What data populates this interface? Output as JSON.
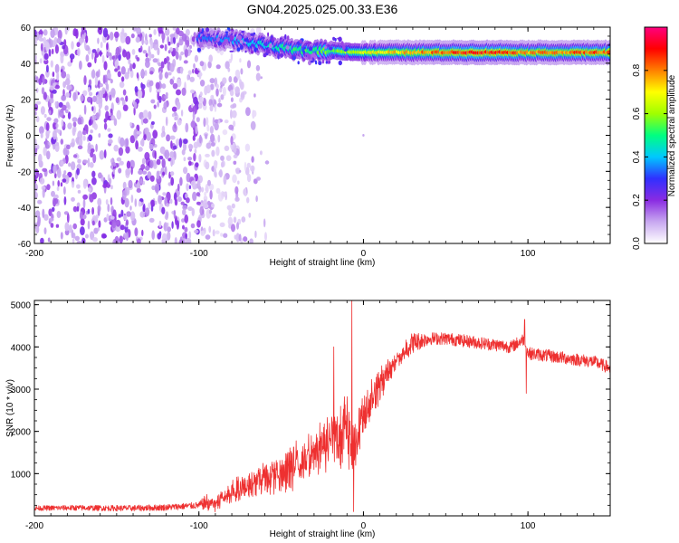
{
  "title": "GN04.2025.025.00.33.E36",
  "colors": {
    "snr_line": "#ee3030",
    "axis": "#000000",
    "background": "#ffffff"
  },
  "chart_data": [
    {
      "type": "heatmap",
      "title": "GN04.2025.025.00.33.E36",
      "xlabel": "Height of straight line (km)",
      "ylabel": "Frequency (Hz)",
      "xlim": [
        -200,
        150
      ],
      "ylim": [
        -60,
        60
      ],
      "xticks": [
        -200,
        -100,
        0,
        100
      ],
      "yticks": [
        -60,
        -40,
        -20,
        0,
        20,
        40,
        60
      ],
      "colorbar": {
        "label": "Normalized spectral amplitude",
        "range": [
          0,
          1
        ],
        "ticks": [
          "0.0",
          "0.2",
          "0.4",
          "0.6",
          "0.8"
        ],
        "colormap": [
          "#ffffff",
          "#c8a8f0",
          "#8a2be2",
          "#3030ff",
          "#00c8ff",
          "#00ff80",
          "#a0ff00",
          "#ffff00",
          "#ff8000",
          "#ff0000",
          "#ff0080"
        ]
      },
      "noise_region": {
        "x_range": [
          -200,
          -80
        ],
        "y_range": [
          -60,
          60
        ],
        "approx_amplitude": 0.12
      },
      "signal_band": {
        "description_points": [
          {
            "x": -100,
            "y": 54,
            "amp": 0.35
          },
          {
            "x": -80,
            "y": 53,
            "amp": 0.4
          },
          {
            "x": -60,
            "y": 50,
            "amp": 0.45
          },
          {
            "x": -40,
            "y": 47,
            "amp": 0.55
          },
          {
            "x": -20,
            "y": 47,
            "amp": 0.6
          },
          {
            "x": 0,
            "y": 46,
            "amp": 0.7
          },
          {
            "x": 20,
            "y": 46,
            "amp": 0.8
          },
          {
            "x": 50,
            "y": 46,
            "amp": 0.9
          },
          {
            "x": 80,
            "y": 46,
            "amp": 0.95
          },
          {
            "x": 100,
            "y": 46,
            "amp": 0.85
          },
          {
            "x": 150,
            "y": 46,
            "amp": 0.9
          }
        ]
      }
    },
    {
      "type": "line",
      "xlabel": "Height of straight line (km)",
      "ylabel": "SNR (10 * v/v)",
      "xlim": [
        -200,
        150
      ],
      "ylim": [
        0,
        5100
      ],
      "xticks": [
        -200,
        -100,
        0,
        100
      ],
      "yticks": [
        1000,
        2000,
        3000,
        4000,
        5000
      ],
      "series": [
        {
          "color": "#ee3030",
          "x": [
            -200,
            -180,
            -160,
            -140,
            -120,
            -100,
            -90,
            -80,
            -70,
            -60,
            -50,
            -40,
            -30,
            -20,
            -10,
            -5,
            0,
            10,
            20,
            30,
            40,
            50,
            60,
            70,
            80,
            90,
            98,
            100,
            110,
            120,
            130,
            140,
            150
          ],
          "y": [
            180,
            190,
            185,
            180,
            200,
            250,
            400,
            700,
            900,
            1100,
            1200,
            1500,
            1700,
            2200,
            2500,
            2000,
            2600,
            3300,
            3800,
            4100,
            4200,
            4200,
            4150,
            4100,
            4050,
            4000,
            4200,
            3850,
            3800,
            3750,
            3700,
            3650,
            3500
          ]
        }
      ],
      "noise_amplitude": [
        {
          "x": -200,
          "amp": 60
        },
        {
          "x": -100,
          "amp": 80
        },
        {
          "x": -90,
          "amp": 350
        },
        {
          "x": -60,
          "amp": 600
        },
        {
          "x": -30,
          "amp": 900
        },
        {
          "x": -10,
          "amp": 1300
        },
        {
          "x": 0,
          "amp": 900
        },
        {
          "x": 20,
          "amp": 350
        },
        {
          "x": 40,
          "amp": 150
        },
        {
          "x": 150,
          "amp": 150
        }
      ],
      "spikes": [
        {
          "x": -7,
          "y": 5100
        },
        {
          "x": -6,
          "y": 100
        },
        {
          "x": -18,
          "y": 4000
        },
        {
          "x": 98,
          "y": 4650
        },
        {
          "x": 99,
          "y": 2900
        }
      ]
    }
  ]
}
